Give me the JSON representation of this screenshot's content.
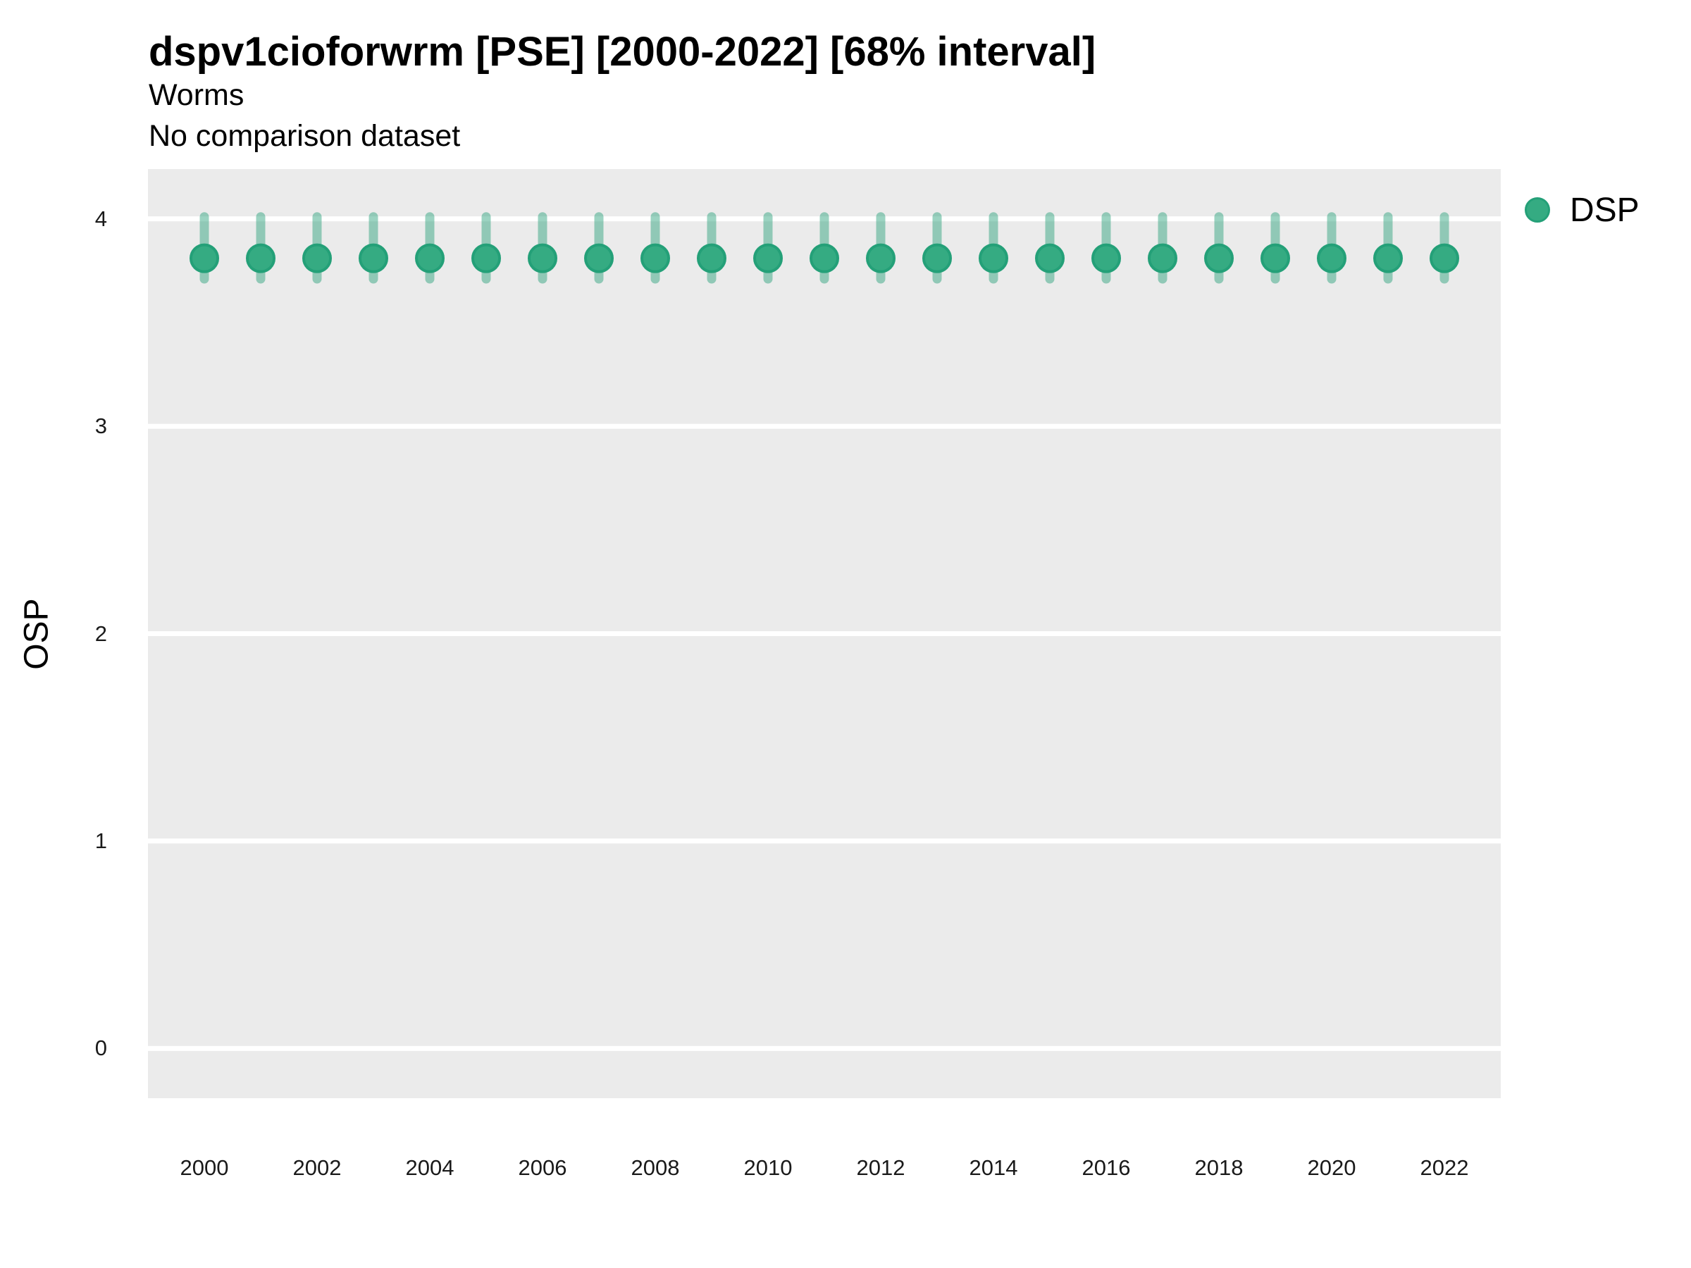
{
  "header": {
    "title": "dspv1cioforwrm [PSE] [2000-2022] [68% interval]",
    "subtitle": "Worms",
    "comparison_note": "No comparison dataset"
  },
  "legend": {
    "position": "top-right",
    "items": [
      {
        "label": "DSP",
        "color": "#35ab82"
      }
    ]
  },
  "colors": {
    "panel_bg": "#ebebeb",
    "gridline": "#ffffff",
    "point_fill": "#35ab82",
    "point_stroke": "#24a078",
    "interval": "rgba(34, 158, 117, 0.45)",
    "text": "#000000"
  },
  "chart_data": {
    "type": "pointrange",
    "title": "dspv1cioforwrm [PSE] [2000-2022] [68% interval]",
    "subtitle": "Worms",
    "note": "No comparison dataset",
    "interval_label": "68% interval",
    "xlabel": "",
    "ylabel": "OSP",
    "xlim": [
      1999,
      2023
    ],
    "ylim": [
      -0.24,
      4.24
    ],
    "x_ticks": [
      2000,
      2002,
      2004,
      2006,
      2008,
      2010,
      2012,
      2014,
      2016,
      2018,
      2020,
      2022
    ],
    "y_ticks": [
      0,
      1,
      2,
      3,
      4
    ],
    "grid": "major-horizontal-only",
    "legend_position": "top-right",
    "series": [
      {
        "name": "DSP",
        "x": [
          2000,
          2001,
          2002,
          2003,
          2004,
          2005,
          2006,
          2007,
          2008,
          2009,
          2010,
          2011,
          2012,
          2013,
          2014,
          2015,
          2016,
          2017,
          2018,
          2019,
          2020,
          2021,
          2022
        ],
        "y": [
          3.81,
          3.81,
          3.81,
          3.81,
          3.81,
          3.81,
          3.81,
          3.81,
          3.81,
          3.81,
          3.81,
          3.81,
          3.81,
          3.81,
          3.81,
          3.81,
          3.81,
          3.81,
          3.81,
          3.81,
          3.81,
          3.81,
          3.81
        ],
        "interval_low": [
          3.71,
          3.71,
          3.71,
          3.71,
          3.71,
          3.71,
          3.71,
          3.71,
          3.71,
          3.71,
          3.71,
          3.71,
          3.71,
          3.71,
          3.71,
          3.71,
          3.71,
          3.71,
          3.71,
          3.71,
          3.71,
          3.71,
          3.71
        ],
        "interval_high": [
          4.01,
          4.01,
          4.01,
          4.01,
          4.01,
          4.01,
          4.01,
          4.01,
          4.01,
          4.01,
          4.01,
          4.01,
          4.01,
          4.01,
          4.01,
          4.01,
          4.01,
          4.01,
          4.01,
          4.01,
          4.01,
          4.01,
          4.01
        ]
      }
    ]
  }
}
